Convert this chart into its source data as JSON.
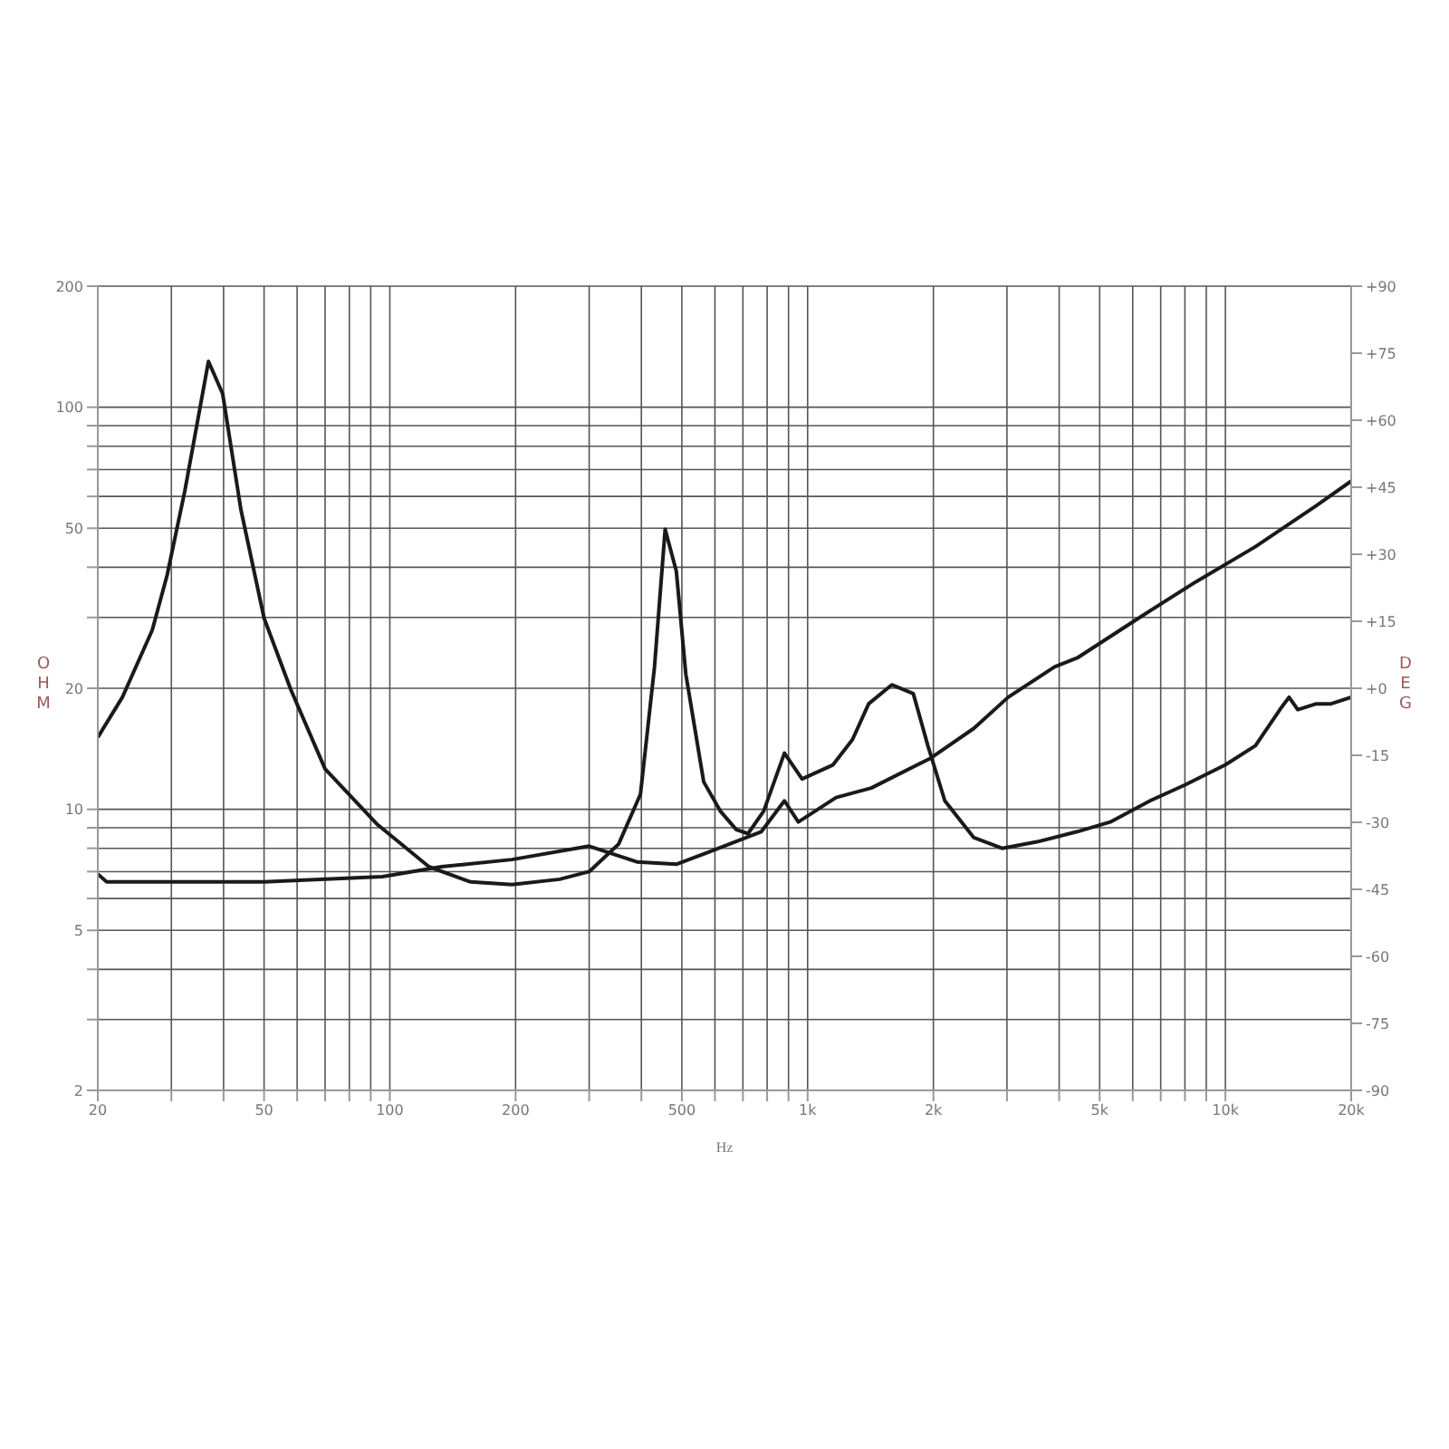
{
  "chart_data": {
    "type": "line",
    "xlabel": "Hz",
    "ylabel": "OHM",
    "y2label": "DEG",
    "log": "xy",
    "grid": true,
    "marker": "none",
    "line_style": "solid",
    "xlim": [
      20,
      20000
    ],
    "xticks": [
      20,
      {
        "value": 30,
        "label": null
      },
      {
        "value": 40,
        "label": null
      },
      50,
      {
        "value": 60,
        "label": null
      },
      {
        "value": 70,
        "label": null
      },
      {
        "value": 80,
        "label": null
      },
      {
        "value": 90,
        "label": null
      },
      100,
      200,
      {
        "value": 300,
        "label": null
      },
      {
        "value": 400,
        "label": null
      },
      500,
      {
        "value": 600,
        "label": null
      },
      {
        "value": 700,
        "label": null
      },
      {
        "value": 800,
        "label": null
      },
      {
        "value": 900,
        "label": null
      },
      {
        "value": 1000,
        "label": "1k"
      },
      {
        "value": 2000,
        "label": "2k"
      },
      {
        "value": 3000,
        "label": null
      },
      {
        "value": 4000,
        "label": null
      },
      {
        "value": 5000,
        "label": "5k"
      },
      {
        "value": 6000,
        "label": null
      },
      {
        "value": 7000,
        "label": null
      },
      {
        "value": 8000,
        "label": null
      },
      {
        "value": 9000,
        "label": null
      },
      {
        "value": 10000,
        "label": "10k"
      },
      {
        "value": 20000,
        "label": "20k"
      }
    ],
    "ylim": [
      2,
      200
    ],
    "yticks": [
      2,
      {
        "value": 3,
        "label": null
      },
      {
        "value": 4,
        "label": null
      },
      5,
      {
        "value": 6,
        "label": null
      },
      {
        "value": 7,
        "label": null
      },
      {
        "value": 8,
        "label": null
      },
      {
        "value": 9,
        "label": null
      },
      10,
      20,
      {
        "value": 30,
        "label": null
      },
      {
        "value": 40,
        "label": null
      },
      50,
      {
        "value": 60,
        "label": null
      },
      {
        "value": 70,
        "label": null
      },
      {
        "value": 80,
        "label": null
      },
      {
        "value": 90,
        "label": null
      },
      100,
      200
    ],
    "y2lim": [
      -90,
      90
    ],
    "y2ticks": [
      {
        "value": -90,
        "label": "-90"
      },
      {
        "value": -75,
        "label": "-75"
      },
      {
        "value": -60,
        "label": "-60"
      },
      {
        "value": -45,
        "label": "-45"
      },
      {
        "value": -30,
        "label": "-30"
      },
      {
        "value": -15,
        "label": "-15"
      },
      {
        "value": 0,
        "label": "+0"
      },
      {
        "value": 15,
        "label": "+15"
      },
      {
        "value": 30,
        "label": "+30"
      },
      {
        "value": 45,
        "label": "+45"
      },
      {
        "value": 60,
        "label": "+60"
      },
      {
        "value": 75,
        "label": "+75"
      },
      {
        "value": 90,
        "label": "+90"
      }
    ],
    "series": [
      {
        "color": "#1a1a1a",
        "x": [
          20,
          22.9,
          27,
          29.3,
          32.3,
          36.8,
          39.8,
          44,
          50,
          58,
          70,
          93,
          124,
          156,
          196,
          255,
          300,
          353,
          398,
          430,
          456,
          485,
          511,
          564,
          618,
          675,
          720,
          785,
          880,
          970,
          1150,
          1280,
          1400,
          1590,
          1790,
          1940,
          2130,
          2500,
          2920,
          3540,
          4420,
          5300,
          6600,
          8000,
          10000,
          11800,
          13500,
          14200,
          14900,
          16500,
          17900,
          20000
        ],
        "values": [
          15.1,
          19,
          27.9,
          38.2,
          61.8,
          130,
          108,
          55.7,
          29.9,
          19.8,
          12.6,
          9.2,
          7.2,
          6.6,
          6.5,
          6.7,
          7,
          8.2,
          10.9,
          22.6,
          49.7,
          39.1,
          21.7,
          11.7,
          9.9,
          8.9,
          8.7,
          9.9,
          13.8,
          11.9,
          12.9,
          14.9,
          18.3,
          20.4,
          19.4,
          14.4,
          10.5,
          8.5,
          8,
          8.3,
          8.8,
          9.3,
          10.5,
          11.5,
          12.9,
          14.4,
          17.7,
          19,
          17.7,
          18.3,
          18.3,
          19
        ]
      },
      {
        "color": "#1a1a1a",
        "x": [
          20,
          21,
          50,
          96,
          133,
          196,
          300,
          390,
          485,
          574,
          775,
          880,
          950,
          1170,
          1420,
          1970,
          2500,
          3020,
          3900,
          4420,
          6200,
          8500,
          11800,
          16500,
          20000
        ],
        "values": [
          6.9,
          6.6,
          6.6,
          6.8,
          7.2,
          7.5,
          8.1,
          7.4,
          7.3,
          7.8,
          8.8,
          10.5,
          9.3,
          10.7,
          11.3,
          13.4,
          15.9,
          19,
          22.6,
          23.8,
          29.9,
          36.8,
          45,
          56.9,
          65.5
        ]
      }
    ]
  }
}
